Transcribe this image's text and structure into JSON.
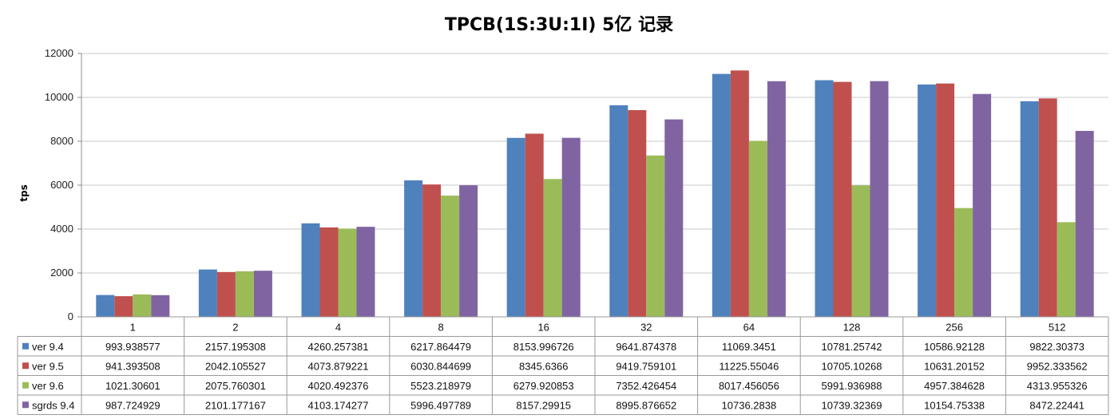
{
  "chart_data": {
    "type": "bar",
    "title": "TPCB(1S:3U:1I) 5亿 记录",
    "ylabel": "tps",
    "xlabel": "",
    "ylim": [
      0,
      12000
    ],
    "yticks": [
      0,
      2000,
      4000,
      6000,
      8000,
      10000,
      12000
    ],
    "grid": true,
    "legend": "data-table",
    "categories": [
      "1",
      "2",
      "4",
      "8",
      "16",
      "32",
      "64",
      "128",
      "256",
      "512"
    ],
    "series": [
      {
        "name": "ver 9.4",
        "color": "#4F81BD",
        "values": [
          993.938577,
          2157.195308,
          4260.257381,
          6217.864479,
          8153.996726,
          9641.874378,
          11069.3451,
          10781.25742,
          10586.92128,
          9822.30373
        ],
        "labels": [
          "993.938577",
          "2157.195308",
          "4260.257381",
          "6217.864479",
          "8153.996726",
          "9641.874378",
          "11069.3451",
          "10781.25742",
          "10586.92128",
          "9822.30373"
        ]
      },
      {
        "name": "ver 9.5",
        "color": "#C0504D",
        "values": [
          941.393508,
          2042.105527,
          4073.879221,
          6030.844699,
          8345.6366,
          9419.759101,
          11225.55046,
          10705.10268,
          10631.20152,
          9952.333562
        ],
        "labels": [
          "941.393508",
          "2042.105527",
          "4073.879221",
          "6030.844699",
          "8345.6366",
          "9419.759101",
          "11225.55046",
          "10705.10268",
          "10631.20152",
          "9952.333562"
        ]
      },
      {
        "name": "ver 9.6",
        "color": "#9BBB59",
        "values": [
          1021.30601,
          2075.760301,
          4020.492376,
          5523.218979,
          6279.920853,
          7352.426454,
          8017.456056,
          5991.936988,
          4957.384628,
          4313.955326
        ],
        "labels": [
          "1021.30601",
          "2075.760301",
          "4020.492376",
          "5523.218979",
          "6279.920853",
          "7352.426454",
          "8017.456056",
          "5991.936988",
          "4957.384628",
          "4313.955326"
        ]
      },
      {
        "name": "sgrds 9.4",
        "color": "#8064A2",
        "values": [
          987.724929,
          2101.177167,
          4103.174277,
          5996.497789,
          8157.29915,
          8995.876652,
          10736.2838,
          10739.32369,
          10154.75338,
          8472.22441
        ],
        "labels": [
          "987.724929",
          "2101.177167",
          "4103.174277",
          "5996.497789",
          "8157.29915",
          "8995.876652",
          "10736.2838",
          "10739.32369",
          "10154.75338",
          "8472.22441"
        ]
      }
    ]
  }
}
